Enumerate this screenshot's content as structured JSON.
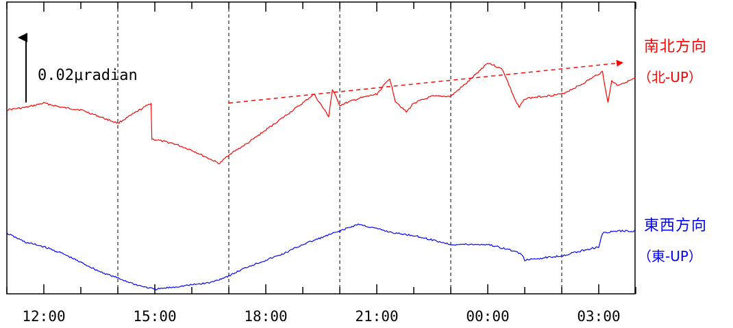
{
  "chart_data": {
    "type": "line",
    "x_tick_labels": [
      "12:00",
      "15:00",
      "18:00",
      "21:00",
      "00:00",
      "03:00"
    ],
    "x_unit": "hours since 11:00",
    "xlim": [
      0,
      17
    ],
    "scale_bar_label": "0.02μradian",
    "scale_bar_value": 0.02,
    "ylim": [
      -0.085,
      0.045
    ],
    "dashed_gridlines_at": [
      3,
      6,
      9,
      12,
      15
    ],
    "trend_arrow": {
      "from": [
        6,
        0.0
      ],
      "to": [
        16,
        0.018
      ],
      "color": "#ff0000"
    },
    "series": [
      {
        "name": "南北方向",
        "direction_label": "（北-UP）",
        "color": "#ff0000",
        "x": [
          0,
          0.5,
          1,
          1.5,
          2,
          2.5,
          3,
          3.3,
          3.6,
          3.9,
          3.92,
          4.2,
          4.5,
          5,
          5.5,
          5.75,
          6,
          6.5,
          7,
          7.5,
          8,
          8.3,
          8.5,
          8.7,
          8.8,
          9,
          9.5,
          10,
          10.35,
          10.5,
          10.8,
          11,
          11.5,
          12,
          12.5,
          13,
          13.4,
          13.75,
          13.85,
          14,
          14.5,
          15,
          15.5,
          16.1,
          16.25,
          16.35,
          16.5,
          17
        ],
        "y": [
          -0.003,
          -0.002,
          0.0,
          -0.002,
          -0.003,
          -0.006,
          -0.009,
          -0.006,
          -0.003,
          0.0,
          -0.016,
          -0.017,
          -0.018,
          -0.021,
          -0.025,
          -0.027,
          -0.023,
          -0.018,
          -0.012,
          -0.006,
          0.0,
          0.004,
          -0.001,
          -0.006,
          0.006,
          -0.001,
          0.002,
          0.004,
          0.011,
          0.001,
          -0.004,
          0.0,
          0.003,
          0.003,
          0.01,
          0.018,
          0.015,
          0.001,
          -0.002,
          0.002,
          0.003,
          0.004,
          0.008,
          0.014,
          0.0,
          0.01,
          0.008,
          0.011
        ]
      },
      {
        "name": "東西方向",
        "direction_label": "（東-UP）",
        "color": "#0000ff",
        "x": [
          0,
          0.5,
          1,
          1.5,
          2,
          2.5,
          3,
          3.5,
          4,
          4.5,
          5,
          5.5,
          6,
          6.5,
          7,
          7.5,
          8,
          8.5,
          9,
          9.5,
          10,
          10.5,
          11,
          11.5,
          12,
          12.5,
          13,
          13.5,
          13.9,
          14,
          14.5,
          15,
          15.5,
          16,
          16.1,
          16.5,
          17
        ],
        "y": [
          -0.058,
          -0.062,
          -0.064,
          -0.067,
          -0.071,
          -0.075,
          -0.078,
          -0.081,
          -0.083,
          -0.082,
          -0.081,
          -0.08,
          -0.077,
          -0.073,
          -0.07,
          -0.067,
          -0.063,
          -0.06,
          -0.057,
          -0.054,
          -0.056,
          -0.058,
          -0.059,
          -0.061,
          -0.063,
          -0.063,
          -0.063,
          -0.065,
          -0.067,
          -0.07,
          -0.069,
          -0.068,
          -0.066,
          -0.064,
          -0.058,
          -0.057,
          -0.057
        ]
      }
    ]
  }
}
